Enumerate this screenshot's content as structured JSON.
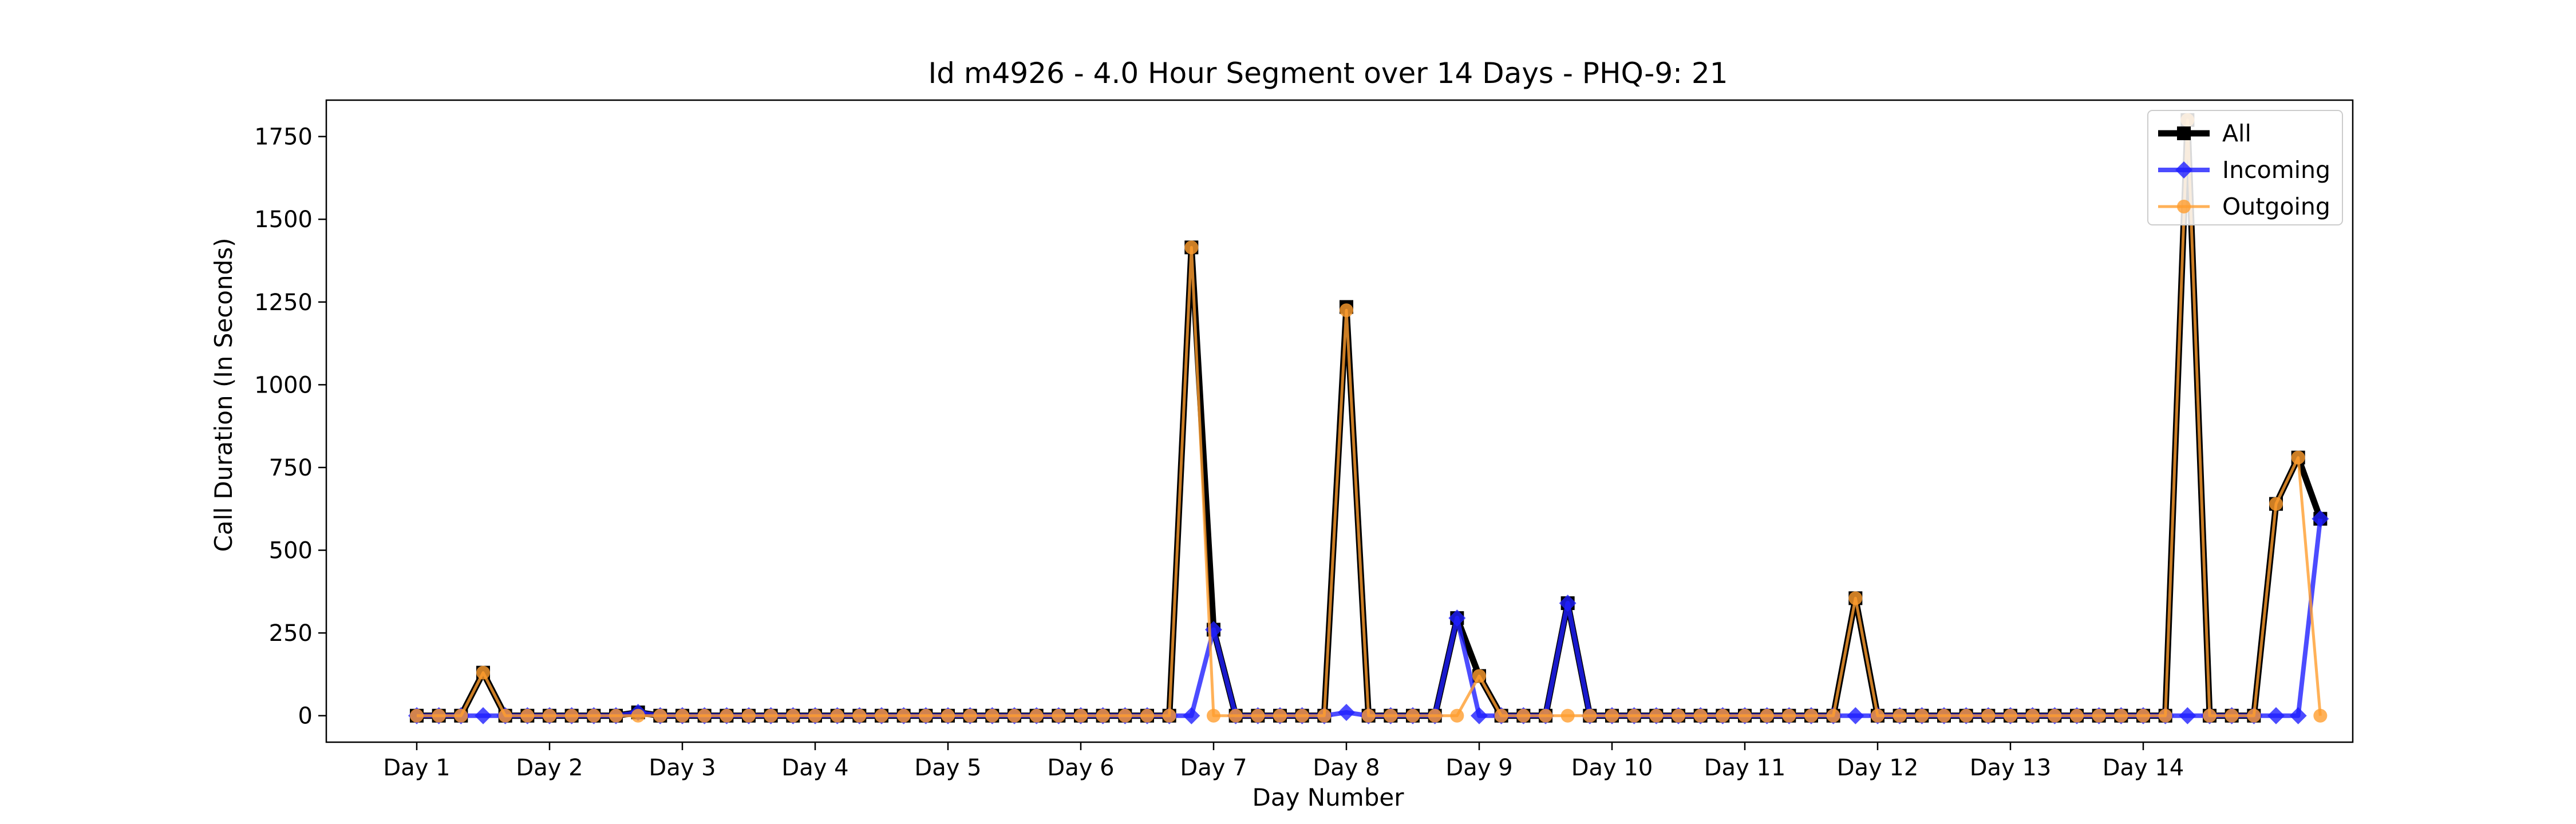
{
  "chart_data": {
    "type": "line",
    "title": "Id m4926 - 4.0 Hour Segment over 14 Days - PHQ-9: 21",
    "xlabel": "Day Number",
    "ylabel": "Call Duration (In Seconds)",
    "ylim": [
      -80,
      1860
    ],
    "yticks": [
      0,
      250,
      500,
      750,
      1000,
      1250,
      1500,
      1750
    ],
    "x_tick_labels": [
      "Day 1",
      "Day 2",
      "Day 3",
      "Day 4",
      "Day 5",
      "Day 6",
      "Day 7",
      "Day 8",
      "Day 9",
      "Day 10",
      "Day 11",
      "Day 12",
      "Day 13",
      "Day 14"
    ],
    "segments_per_day": 6,
    "legend_position": "top-right",
    "grid": false,
    "series": [
      {
        "name": "All",
        "color": "#000000",
        "marker": "square",
        "values": [
          0,
          0,
          0,
          130,
          0,
          0,
          0,
          0,
          0,
          0,
          10,
          0,
          0,
          0,
          0,
          0,
          0,
          0,
          0,
          0,
          0,
          0,
          0,
          0,
          0,
          0,
          0,
          0,
          0,
          0,
          0,
          0,
          0,
          0,
          0,
          1415,
          260,
          0,
          0,
          0,
          0,
          0,
          1235,
          0,
          0,
          0,
          0,
          295,
          120,
          0,
          0,
          0,
          340,
          0,
          0,
          0,
          0,
          0,
          0,
          0,
          0,
          0,
          0,
          0,
          0,
          355,
          0,
          0,
          0,
          0,
          0,
          0,
          0,
          0,
          0,
          0,
          0,
          0,
          0,
          0,
          1800,
          0,
          0,
          0,
          640,
          780,
          595
        ]
      },
      {
        "name": "Incoming",
        "color": "#1f1fff",
        "marker": "diamond",
        "values": [
          0,
          0,
          0,
          0,
          0,
          0,
          0,
          0,
          0,
          0,
          10,
          0,
          0,
          0,
          0,
          0,
          0,
          0,
          0,
          0,
          0,
          0,
          0,
          0,
          0,
          0,
          0,
          0,
          0,
          0,
          0,
          0,
          0,
          0,
          0,
          0,
          260,
          0,
          0,
          0,
          0,
          0,
          10,
          0,
          0,
          0,
          0,
          295,
          0,
          0,
          0,
          0,
          340,
          0,
          0,
          0,
          0,
          0,
          0,
          0,
          0,
          0,
          0,
          0,
          0,
          0,
          0,
          0,
          0,
          0,
          0,
          0,
          0,
          0,
          0,
          0,
          0,
          0,
          0,
          0,
          0,
          0,
          0,
          0,
          0,
          0,
          595
        ]
      },
      {
        "name": "Outgoing",
        "color": "#ff9d2e",
        "marker": "circle",
        "values": [
          0,
          0,
          0,
          130,
          0,
          0,
          0,
          0,
          0,
          0,
          0,
          0,
          0,
          0,
          0,
          0,
          0,
          0,
          0,
          0,
          0,
          0,
          0,
          0,
          0,
          0,
          0,
          0,
          0,
          0,
          0,
          0,
          0,
          0,
          0,
          1415,
          0,
          0,
          0,
          0,
          0,
          0,
          1225,
          0,
          0,
          0,
          0,
          0,
          120,
          0,
          0,
          0,
          0,
          0,
          0,
          0,
          0,
          0,
          0,
          0,
          0,
          0,
          0,
          0,
          0,
          355,
          0,
          0,
          0,
          0,
          0,
          0,
          0,
          0,
          0,
          0,
          0,
          0,
          0,
          0,
          1800,
          0,
          0,
          0,
          640,
          780,
          0
        ]
      }
    ]
  }
}
